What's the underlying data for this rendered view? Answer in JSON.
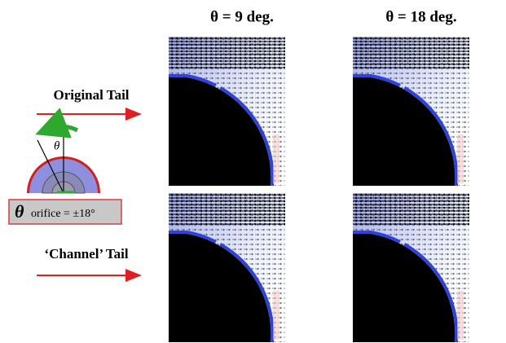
{
  "column_headers": [
    "θ = 9  deg.",
    "θ = 18 deg."
  ],
  "row_labels": [
    "Original Tail",
    "‘Channel’ Tail"
  ],
  "diagram": {
    "angle_symbol": "θ",
    "caption_symbol": "θ",
    "caption_text": "orifice = ±18°"
  }
}
